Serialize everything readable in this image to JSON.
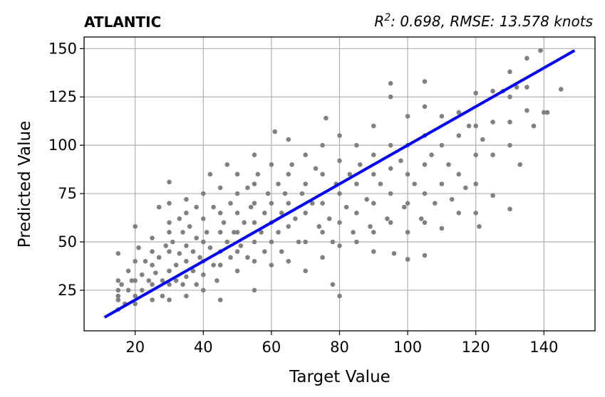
{
  "chart_data": {
    "type": "scatter",
    "title": "ATLANTIC",
    "subtitle": "R²: 0.698, RMSE: 13.578 knots",
    "xlabel": "Target Value",
    "ylabel": "Predicted Value",
    "xlim": [
      5,
      155
    ],
    "ylim": [
      4,
      156
    ],
    "xticks": [
      20,
      40,
      60,
      80,
      100,
      120,
      140
    ],
    "yticks": [
      25,
      50,
      75,
      100,
      125,
      150
    ],
    "grid": true,
    "point_color": "#808080",
    "line_color": "#0000ff",
    "fit_line": {
      "x": [
        11,
        149
      ],
      "y": [
        11,
        149
      ]
    },
    "series": [
      {
        "values": [
          [
            15,
            44
          ],
          [
            15,
            30
          ],
          [
            15,
            25
          ],
          [
            15,
            20
          ],
          [
            15,
            15
          ],
          [
            15,
            22
          ],
          [
            16,
            28
          ],
          [
            17,
            18
          ],
          [
            18,
            35
          ],
          [
            18,
            25
          ],
          [
            19,
            30
          ],
          [
            20,
            58
          ],
          [
            20,
            40
          ],
          [
            20,
            30
          ],
          [
            20,
            22
          ],
          [
            20,
            18
          ],
          [
            21,
            47
          ],
          [
            22,
            33
          ],
          [
            22,
            25
          ],
          [
            23,
            40
          ],
          [
            24,
            30
          ],
          [
            25,
            52
          ],
          [
            25,
            45
          ],
          [
            25,
            38
          ],
          [
            25,
            28
          ],
          [
            25,
            20
          ],
          [
            26,
            34
          ],
          [
            27,
            68
          ],
          [
            27,
            42
          ],
          [
            28,
            30
          ],
          [
            28,
            22
          ],
          [
            29,
            48
          ],
          [
            30,
            81
          ],
          [
            30,
            70
          ],
          [
            30,
            60
          ],
          [
            30,
            55
          ],
          [
            30,
            45
          ],
          [
            30,
            35
          ],
          [
            30,
            28
          ],
          [
            30,
            20
          ],
          [
            31,
            50
          ],
          [
            32,
            38
          ],
          [
            32,
            30
          ],
          [
            33,
            62
          ],
          [
            33,
            44
          ],
          [
            34,
            55
          ],
          [
            34,
            28
          ],
          [
            35,
            72
          ],
          [
            35,
            65
          ],
          [
            35,
            48
          ],
          [
            35,
            40
          ],
          [
            35,
            32
          ],
          [
            35,
            22
          ],
          [
            36,
            58
          ],
          [
            37,
            45
          ],
          [
            37,
            35
          ],
          [
            38,
            68
          ],
          [
            38,
            52
          ],
          [
            38,
            28
          ],
          [
            39,
            42
          ],
          [
            40,
            75
          ],
          [
            40,
            62
          ],
          [
            40,
            50
          ],
          [
            40,
            40
          ],
          [
            40,
            33
          ],
          [
            40,
            25
          ],
          [
            41,
            55
          ],
          [
            42,
            85
          ],
          [
            42,
            47
          ],
          [
            43,
            38
          ],
          [
            43,
            68
          ],
          [
            44,
            30
          ],
          [
            45,
            78
          ],
          [
            45,
            65
          ],
          [
            45,
            55
          ],
          [
            45,
            45
          ],
          [
            45,
            38
          ],
          [
            45,
            20
          ],
          [
            46,
            60
          ],
          [
            47,
            50
          ],
          [
            47,
            90
          ],
          [
            48,
            42
          ],
          [
            48,
            70
          ],
          [
            49,
            55
          ],
          [
            50,
            85
          ],
          [
            50,
            75
          ],
          [
            50,
            65
          ],
          [
            50,
            55
          ],
          [
            50,
            45
          ],
          [
            50,
            35
          ],
          [
            51,
            48
          ],
          [
            52,
            60
          ],
          [
            53,
            78
          ],
          [
            53,
            42
          ],
          [
            54,
            68
          ],
          [
            55,
            95
          ],
          [
            55,
            80
          ],
          [
            55,
            70
          ],
          [
            55,
            60
          ],
          [
            55,
            50
          ],
          [
            55,
            40
          ],
          [
            55,
            25
          ],
          [
            56,
            85
          ],
          [
            57,
            55
          ],
          [
            58,
            65
          ],
          [
            58,
            45
          ],
          [
            59,
            75
          ],
          [
            60,
            90
          ],
          [
            60,
            70
          ],
          [
            60,
            60
          ],
          [
            60,
            50
          ],
          [
            60,
            38
          ],
          [
            61,
            107
          ],
          [
            62,
            80
          ],
          [
            62,
            55
          ],
          [
            63,
            65
          ],
          [
            63,
            45
          ],
          [
            64,
            75
          ],
          [
            65,
            103
          ],
          [
            65,
            85
          ],
          [
            65,
            70
          ],
          [
            65,
            58
          ],
          [
            65,
            40
          ],
          [
            66,
            90
          ],
          [
            67,
            62
          ],
          [
            68,
            50
          ],
          [
            69,
            75
          ],
          [
            70,
            95
          ],
          [
            70,
            80
          ],
          [
            70,
            65
          ],
          [
            70,
            50
          ],
          [
            70,
            35
          ],
          [
            72,
            70
          ],
          [
            73,
            88
          ],
          [
            74,
            58
          ],
          [
            75,
            100
          ],
          [
            75,
            85
          ],
          [
            75,
            70
          ],
          [
            75,
            55
          ],
          [
            75,
            42
          ],
          [
            76,
            114
          ],
          [
            77,
            62
          ],
          [
            78,
            50
          ],
          [
            78,
            28
          ],
          [
            79,
            80
          ],
          [
            80,
            105
          ],
          [
            80,
            92
          ],
          [
            80,
            75
          ],
          [
            80,
            60
          ],
          [
            80,
            48
          ],
          [
            80,
            22
          ],
          [
            82,
            68
          ],
          [
            83,
            85
          ],
          [
            84,
            55
          ],
          [
            85,
            100
          ],
          [
            85,
            80
          ],
          [
            85,
            65
          ],
          [
            85,
            50
          ],
          [
            86,
            90
          ],
          [
            88,
            72
          ],
          [
            89,
            58
          ],
          [
            90,
            110
          ],
          [
            90,
            95
          ],
          [
            90,
            85
          ],
          [
            90,
            70
          ],
          [
            90,
            55
          ],
          [
            90,
            45
          ],
          [
            92,
            80
          ],
          [
            94,
            62
          ],
          [
            95,
            132
          ],
          [
            95,
            125
          ],
          [
            95,
            100
          ],
          [
            95,
            88
          ],
          [
            95,
            75
          ],
          [
            95,
            60
          ],
          [
            96,
            44
          ],
          [
            98,
            92
          ],
          [
            99,
            68
          ],
          [
            100,
            115
          ],
          [
            100,
            100
          ],
          [
            100,
            85
          ],
          [
            100,
            70
          ],
          [
            100,
            55
          ],
          [
            100,
            41
          ],
          [
            102,
            80
          ],
          [
            104,
            62
          ],
          [
            105,
            133
          ],
          [
            105,
            120
          ],
          [
            105,
            105
          ],
          [
            105,
            90
          ],
          [
            105,
            75
          ],
          [
            105,
            60
          ],
          [
            105,
            43
          ],
          [
            107,
            95
          ],
          [
            108,
            70
          ],
          [
            110,
            115
          ],
          [
            110,
            100
          ],
          [
            110,
            80
          ],
          [
            110,
            57
          ],
          [
            112,
            90
          ],
          [
            113,
            72
          ],
          [
            115,
            117
          ],
          [
            115,
            105
          ],
          [
            115,
            85
          ],
          [
            115,
            65
          ],
          [
            117,
            78
          ],
          [
            118,
            110
          ],
          [
            120,
            127
          ],
          [
            120,
            110
          ],
          [
            120,
            95
          ],
          [
            120,
            80
          ],
          [
            120,
            65
          ],
          [
            121,
            58
          ],
          [
            122,
            103
          ],
          [
            125,
            128
          ],
          [
            125,
            112
          ],
          [
            125,
            95
          ],
          [
            125,
            74
          ],
          [
            128,
            128
          ],
          [
            130,
            138
          ],
          [
            130,
            125
          ],
          [
            130,
            112
          ],
          [
            130,
            100
          ],
          [
            130,
            67
          ],
          [
            132,
            130
          ],
          [
            133,
            90
          ],
          [
            135,
            145
          ],
          [
            135,
            130
          ],
          [
            135,
            118
          ],
          [
            137,
            110
          ],
          [
            139,
            149
          ],
          [
            140,
            117
          ],
          [
            141,
            117
          ],
          [
            145,
            129
          ]
        ]
      }
    ]
  }
}
